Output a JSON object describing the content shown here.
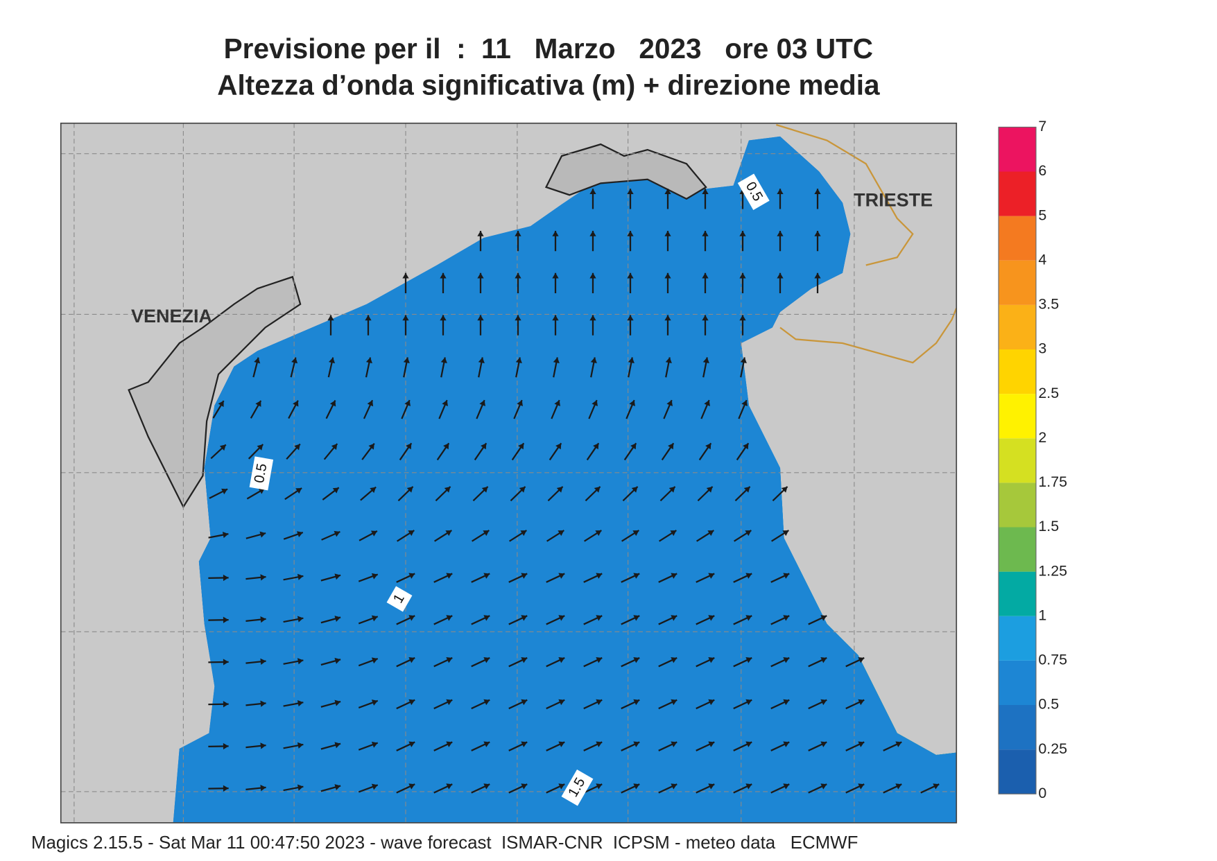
{
  "header": {
    "title": "Previsione per il  :  11   Marzo   2023   ore 03 UTC",
    "subtitle": "Altezza d’onda significativa (m) + direzione media"
  },
  "places": [
    "VENEZIA",
    "TRIESTE"
  ],
  "contour_labels": [
    "0.5",
    "0.5",
    "1",
    "1.5"
  ],
  "colorbar": {
    "levels": [
      0,
      0.25,
      0.5,
      0.75,
      1,
      1.25,
      1.5,
      1.75,
      2,
      2.5,
      3,
      3.5,
      4,
      5,
      6,
      7
    ],
    "colors": [
      "#1b5fae",
      "#1d72c2",
      "#1d86d4",
      "#1c9ee0",
      "#03aaa3",
      "#6db94f",
      "#a6c83b",
      "#d5e021",
      "#fff200",
      "#ffd400",
      "#fbb117",
      "#f7941d",
      "#f47a20",
      "#ec2027",
      "#ec1460"
    ]
  },
  "footer": "Magics 2.15.5 - Sat Mar 11 00:47:50 2023 - wave forecast  ISMAR-CNR  ICPSM - meteo data   ECMWF"
}
